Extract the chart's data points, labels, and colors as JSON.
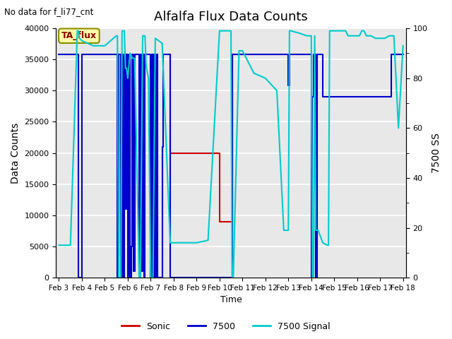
{
  "title": "Alfalfa Flux Data Counts",
  "xlabel": "Time",
  "ylabel_left": "Data Counts",
  "ylabel_right": "7500 SS",
  "top_label": "No data for f_li77_cnt",
  "annotation": "TA_flux",
  "ylim_left": [
    0,
    40000
  ],
  "ylim_right": [
    0,
    100
  ],
  "background_color": "#e8e8e8",
  "grid_color": "white",
  "xtick_labels": [
    "Feb 3",
    "Feb 4",
    "Feb 5",
    "Feb 6",
    "Feb 7",
    "Feb 8",
    "Feb 9",
    "Feb 10",
    "Feb 11",
    "Feb 12",
    "Feb 13",
    "Feb 14",
    "Feb 15",
    "Feb 16",
    "Feb 17",
    "Feb 18"
  ],
  "sonic_color": "#cc0000",
  "p7500_color": "#0000cc",
  "signal_color": "#00cccc",
  "legend_entries": [
    "Sonic",
    "7500",
    "7500 Signal"
  ],
  "sonic_x": [
    7.85,
    7.85,
    10.0,
    10.0,
    10.55,
    10.55,
    11.0
  ],
  "sonic_y": [
    35800,
    20000,
    20000,
    9000,
    9000,
    35800,
    35800
  ],
  "p7500_x": [
    3.0,
    3.85,
    3.85,
    4.0,
    4.0,
    5.55,
    5.55,
    5.6,
    5.6,
    5.7,
    5.7,
    5.75,
    5.75,
    5.8,
    5.8,
    5.85,
    5.85,
    5.9,
    5.9,
    5.95,
    5.95,
    6.0,
    6.0,
    6.05,
    6.05,
    6.1,
    6.1,
    6.15,
    6.15,
    6.2,
    6.2,
    6.25,
    6.25,
    6.3,
    6.3,
    6.5,
    6.5,
    6.55,
    6.55,
    6.6,
    6.6,
    6.65,
    6.65,
    6.7,
    6.7,
    6.75,
    6.75,
    7.0,
    7.0,
    7.05,
    7.05,
    7.1,
    7.1,
    7.15,
    7.15,
    7.2,
    7.2,
    7.25,
    7.25,
    7.3,
    7.3,
    7.5,
    7.5,
    7.55,
    7.55,
    7.85,
    7.85,
    10.55,
    10.55,
    13.0,
    13.0,
    13.05,
    13.05,
    14.0,
    14.0,
    14.05,
    14.05,
    14.1,
    14.1,
    14.2,
    14.2,
    14.25,
    14.25,
    14.5,
    14.5,
    17.5,
    17.5,
    18.0
  ],
  "p7500_y": [
    35800,
    35800,
    0,
    0,
    35800,
    35800,
    0,
    0,
    35800,
    35800,
    0,
    0,
    35800,
    35800,
    0,
    0,
    35800,
    35800,
    11000,
    11000,
    35800,
    35800,
    0,
    0,
    35800,
    35800,
    0,
    0,
    5000,
    5000,
    35800,
    35800,
    1000,
    1000,
    35800,
    35800,
    0,
    0,
    35800,
    35800,
    1000,
    1000,
    35800,
    35800,
    0,
    0,
    35800,
    35800,
    0,
    0,
    35800,
    35800,
    0,
    0,
    35800,
    35800,
    0,
    0,
    35800,
    35800,
    0,
    0,
    21000,
    21000,
    35800,
    35800,
    0,
    0,
    35800,
    35800,
    30800,
    30800,
    35800,
    35800,
    0,
    0,
    29000,
    29000,
    35800,
    35800,
    0,
    0,
    35800,
    35800,
    29000,
    29000,
    35800,
    35800
  ],
  "signal_x": [
    3.0,
    3.0,
    3.5,
    3.8,
    3.85,
    3.9,
    4.0,
    4.5,
    5.0,
    5.5,
    5.55,
    5.6,
    5.7,
    5.75,
    5.85,
    5.9,
    5.95,
    6.0,
    6.05,
    6.1,
    6.2,
    6.3,
    6.5,
    6.55,
    6.65,
    6.75,
    6.8,
    6.9,
    7.0,
    7.1,
    7.2,
    7.5,
    7.85,
    8.0,
    8.5,
    9.0,
    9.5,
    10.0,
    10.5,
    10.55,
    10.6,
    10.85,
    11.0,
    11.5,
    12.0,
    12.5,
    12.8,
    13.0,
    13.05,
    13.1,
    13.5,
    13.8,
    14.0,
    14.05,
    14.1,
    14.15,
    14.2,
    14.3,
    14.5,
    14.7,
    14.75,
    14.8,
    14.85,
    15.0,
    15.2,
    15.4,
    15.5,
    15.6,
    15.8,
    16.0,
    16.1,
    16.2,
    16.3,
    16.4,
    16.5,
    16.6,
    16.8,
    17.0,
    17.2,
    17.4,
    17.6,
    17.8,
    18.0
  ],
  "signal_y": [
    13,
    13,
    13,
    99,
    99,
    96,
    95,
    93,
    93,
    97,
    97,
    0,
    0,
    99,
    99,
    84,
    84,
    80,
    85,
    90,
    88,
    88,
    0,
    0,
    97,
    97,
    85,
    80,
    0,
    0,
    96,
    94,
    14,
    14,
    14,
    14,
    15,
    99,
    99,
    0,
    0,
    91,
    91,
    82,
    80,
    75,
    19,
    19,
    99,
    99,
    98,
    97,
    97,
    0,
    0,
    97,
    19,
    19,
    14,
    13,
    13,
    99,
    99,
    99,
    99,
    99,
    99,
    97,
    97,
    97,
    97,
    99,
    99,
    97,
    97,
    97,
    96,
    96,
    96,
    97,
    97,
    60,
    93
  ]
}
